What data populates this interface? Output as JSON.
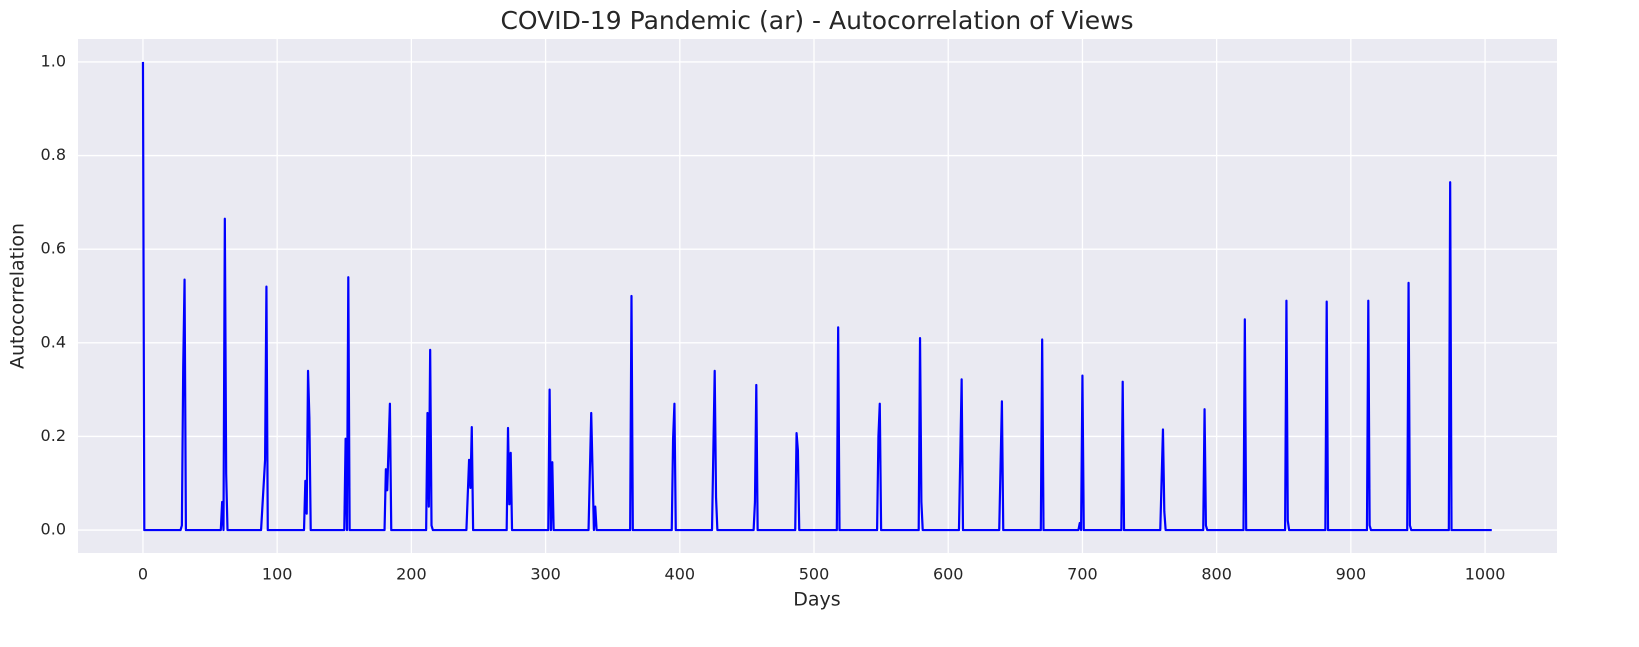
{
  "chart_data": {
    "type": "line",
    "title": "COVID-19 Pandemic (ar) - Autocorrelation of Views",
    "x_label": "Days",
    "y_label": "Autocorrelation",
    "xlim": [
      -48.4,
      1053.6
    ],
    "ylim": [
      -0.049,
      1.049
    ],
    "xticks": [
      0,
      100,
      200,
      300,
      400,
      500,
      600,
      700,
      800,
      900,
      1000
    ],
    "yticks": [
      {
        "value": 0,
        "label": "0.0"
      },
      0.2,
      0.4,
      0.6,
      0.8,
      {
        "value": 1,
        "label": "1.0"
      }
    ],
    "grid": true,
    "background": "#eaeaf2",
    "grid_color": "#ffffff",
    "series": [
      {
        "color": "#0000ff",
        "x": [
          0,
          1,
          28,
          29,
          30,
          31,
          32,
          58,
          59,
          60,
          61,
          62,
          63,
          88,
          91,
          92,
          93,
          120,
          121,
          122,
          123,
          124,
          125,
          150,
          151,
          152,
          153,
          154,
          180,
          181,
          182,
          184,
          185,
          211,
          212,
          213,
          214,
          215,
          216,
          241,
          243,
          244,
          245,
          246,
          271,
          272,
          273,
          274,
          275,
          302,
          303,
          304,
          305,
          306,
          332,
          334,
          336,
          337,
          338,
          363,
          364,
          365,
          394,
          395,
          396,
          397,
          424,
          426,
          427,
          428,
          455,
          456,
          457,
          458,
          486,
          487,
          488,
          489,
          517,
          518,
          519,
          547,
          548,
          549,
          550,
          578,
          579,
          580,
          581,
          608,
          610,
          611,
          638,
          640,
          641,
          669,
          670,
          671,
          697,
          698,
          699,
          700,
          701,
          729,
          730,
          731,
          758,
          760,
          761,
          762,
          790,
          791,
          792,
          793,
          820,
          821,
          822,
          851,
          852,
          853,
          854,
          881,
          882,
          883,
          912,
          913,
          914,
          915,
          942,
          943,
          944,
          945,
          973,
          974,
          975,
          1005
        ],
        "values": [
          1.0,
          0,
          0,
          0.01,
          0.35,
          0.535,
          0,
          0,
          0.06,
          0,
          0.665,
          0.12,
          0,
          0,
          0.15,
          0.52,
          0,
          0,
          0.105,
          0.035,
          0.34,
          0.24,
          0,
          0,
          0.195,
          0,
          0.54,
          0,
          0,
          0.13,
          0.085,
          0.27,
          0,
          0,
          0.25,
          0.05,
          0.385,
          0.01,
          0,
          0,
          0.15,
          0.09,
          0.22,
          0,
          0,
          0.218,
          0.055,
          0.165,
          0,
          0,
          0.3,
          0,
          0.145,
          0,
          0,
          0.25,
          0,
          0.05,
          0,
          0,
          0.5,
          0,
          0,
          0.195,
          0.27,
          0,
          0,
          0.34,
          0.07,
          0,
          0,
          0.06,
          0.31,
          0,
          0,
          0.207,
          0.17,
          0,
          0,
          0.433,
          0,
          0,
          0.2,
          0.27,
          0,
          0,
          0.41,
          0.06,
          0,
          0,
          0.322,
          0,
          0,
          0.275,
          0,
          0,
          0.407,
          0,
          0,
          0.015,
          0,
          0.33,
          0,
          0,
          0.317,
          0,
          0,
          0.215,
          0.04,
          0,
          0,
          0.258,
          0.01,
          0,
          0,
          0.45,
          0,
          0,
          0.49,
          0.02,
          0,
          0,
          0.488,
          0,
          0,
          0.49,
          0.01,
          0,
          0,
          0.528,
          0.01,
          0,
          0,
          0.743,
          0,
          0
        ]
      }
    ]
  }
}
